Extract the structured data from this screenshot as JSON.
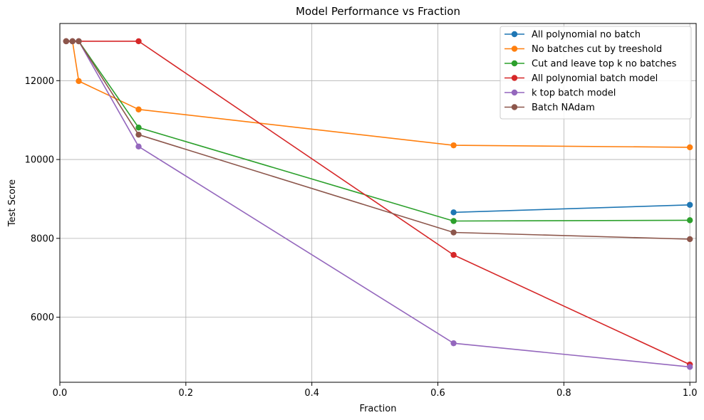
{
  "chart_data": {
    "type": "line",
    "title": "Model Performance vs Fraction",
    "xlabel": "Fraction",
    "ylabel": "Test Score",
    "xlim": [
      0.0,
      1.01
    ],
    "ylim": [
      4350,
      13450
    ],
    "xticks": [
      0.0,
      0.2,
      0.4,
      0.6,
      0.8,
      1.0
    ],
    "xtick_labels": [
      "0.0",
      "0.2",
      "0.4",
      "0.6",
      "0.8",
      "1.0"
    ],
    "yticks": [
      6000,
      8000,
      10000,
      12000
    ],
    "ytick_labels": [
      "6000",
      "8000",
      "10000",
      "12000"
    ],
    "grid": true,
    "legend_position": "top-right",
    "series": [
      {
        "name": "All polynomial no batch",
        "color": "#1f77b4",
        "x": [
          0.625,
          1.0
        ],
        "y": [
          8660,
          8850
        ]
      },
      {
        "name": "No batches cut by treeshold",
        "color": "#ff7f0e",
        "x": [
          0.01,
          0.02,
          0.03,
          0.125,
          0.625,
          1.0
        ],
        "y": [
          13000,
          13000,
          11990,
          11270,
          10360,
          10310
        ]
      },
      {
        "name": "Cut and leave top k no batches",
        "color": "#2ca02c",
        "x": [
          0.01,
          0.02,
          0.03,
          0.125,
          0.625,
          1.0
        ],
        "y": [
          13000,
          13000,
          13000,
          10810,
          8440,
          8460
        ]
      },
      {
        "name": "All polynomial batch model",
        "color": "#d62728",
        "x": [
          0.01,
          0.02,
          0.03,
          0.125,
          0.625,
          1.0
        ],
        "y": [
          13000,
          13000,
          13000,
          13000,
          7580,
          4800
        ]
      },
      {
        "name": "k top batch model",
        "color": "#9467bd",
        "x": [
          0.01,
          0.02,
          0.03,
          0.125,
          0.625,
          1.0
        ],
        "y": [
          13000,
          13000,
          13000,
          10330,
          5340,
          4740
        ]
      },
      {
        "name": "Batch NAdam",
        "color": "#8c564b",
        "x": [
          0.01,
          0.02,
          0.03,
          0.125,
          0.625,
          1.0
        ],
        "y": [
          13000,
          13000,
          13000,
          10630,
          8150,
          7980
        ]
      }
    ]
  }
}
